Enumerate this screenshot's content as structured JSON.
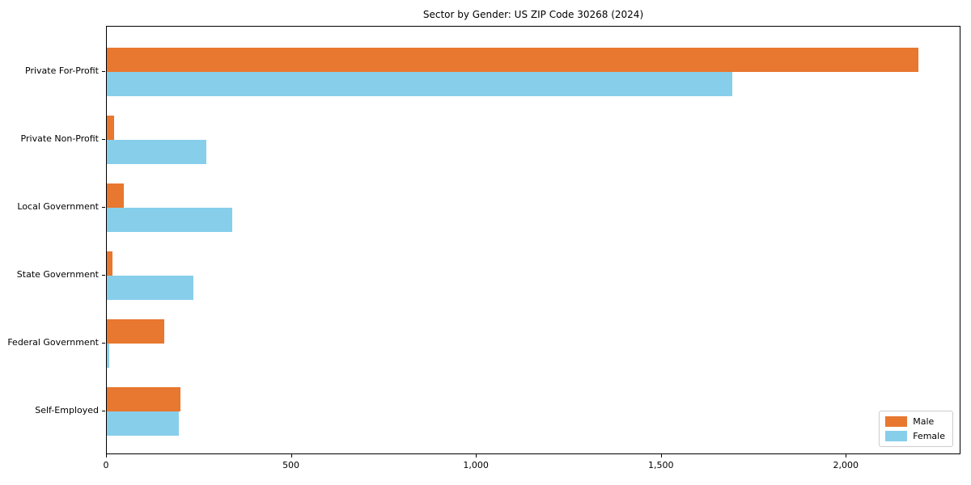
{
  "title": "Sector by Gender: US ZIP Code 30268 (2024)",
  "chart_data": {
    "type": "bar",
    "orientation": "horizontal",
    "title": "Sector by Gender: US ZIP Code 30268 (2024)",
    "xlabel": "",
    "ylabel": "",
    "categories": [
      "Private For-Profit",
      "Private Non-Profit",
      "Local Government",
      "State Government",
      "Federal Government",
      "Self-Employed"
    ],
    "series": [
      {
        "name": "Male",
        "color": "#e8772f",
        "values": [
          2195,
          20,
          45,
          15,
          155,
          200
        ]
      },
      {
        "name": "Female",
        "color": "#87ceeb",
        "values": [
          1690,
          270,
          340,
          235,
          7,
          195
        ]
      }
    ],
    "xlim": [
      0,
      2310
    ],
    "xticks": [
      0,
      500,
      1000,
      1500,
      2000
    ],
    "xtick_labels": [
      "0",
      "500",
      "1,000",
      "1,500",
      "2,000"
    ],
    "grid": false,
    "background": "#ffffff",
    "legend": {
      "position": "lower right",
      "entries": [
        "Male",
        "Female"
      ]
    }
  }
}
